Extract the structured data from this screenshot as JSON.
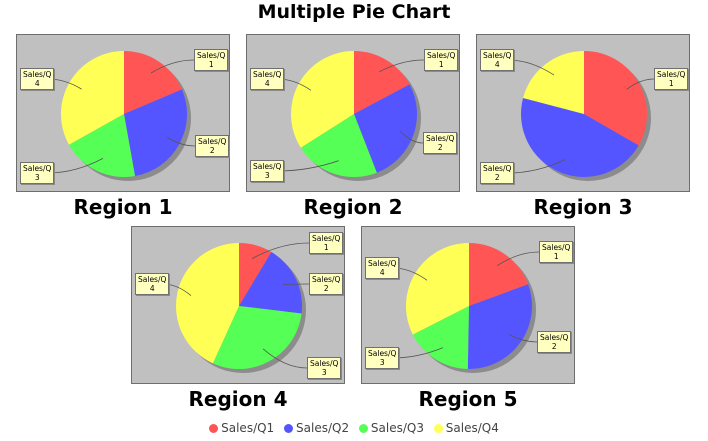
{
  "chart_data": {
    "type": "pie",
    "title": "Multiple Pie Chart",
    "categories": [
      "Sales/Q1",
      "Sales/Q2",
      "Sales/Q3",
      "Sales/Q4"
    ],
    "colors": [
      "#ff5555",
      "#5555ff",
      "#55ff55",
      "#ffff55"
    ],
    "legend_position": "bottom",
    "charts": [
      {
        "title": "Region 1",
        "values": [
          0.186,
          0.286,
          0.197,
          0.331
        ]
      },
      {
        "title": "Region 2",
        "values": [
          0.172,
          0.269,
          0.219,
          0.34
        ]
      },
      {
        "title": "Region 3",
        "values": [
          0.333,
          0.458,
          0.0,
          0.209
        ]
      },
      {
        "title": "Region 4",
        "values": [
          0.086,
          0.183,
          0.299,
          0.432
        ]
      },
      {
        "title": "Region 5",
        "values": [
          0.194,
          0.309,
          0.172,
          0.325
        ]
      }
    ]
  },
  "labels": {
    "q1": [
      "Sales/Q",
      "1"
    ],
    "q2": [
      "Sales/Q",
      "2"
    ],
    "q3": [
      "Sales/Q",
      "3"
    ],
    "q4": [
      "Sales/Q",
      "4"
    ]
  }
}
